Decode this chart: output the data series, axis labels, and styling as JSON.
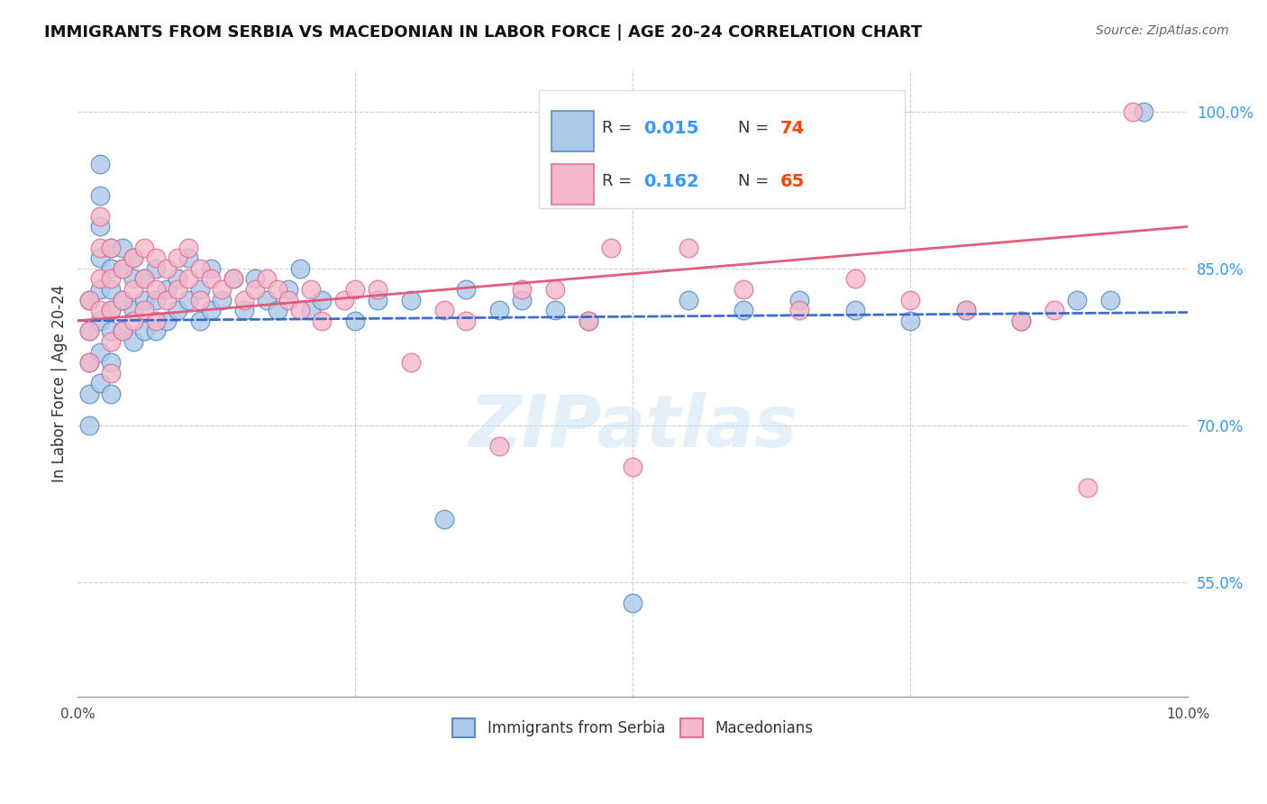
{
  "title": "IMMIGRANTS FROM SERBIA VS MACEDONIAN IN LABOR FORCE | AGE 20-24 CORRELATION CHART",
  "source": "Source: ZipAtlas.com",
  "ylabel": "In Labor Force | Age 20-24",
  "xlim": [
    0.0,
    0.1
  ],
  "ylim": [
    0.44,
    1.04
  ],
  "yticks": [
    0.55,
    0.7,
    0.85,
    1.0
  ],
  "ytick_labels": [
    "55.0%",
    "70.0%",
    "85.0%",
    "100.0%"
  ],
  "serbia_color": "#aac9e8",
  "serbia_edge": "#5a8fc0",
  "macedonia_color": "#f5b8cb",
  "macedonia_edge": "#e07095",
  "serbia_line_color": "#3366cc",
  "macedonia_line_color": "#e05575",
  "serbia_r": 0.015,
  "serbia_n": 74,
  "macedonia_r": 0.162,
  "macedonia_n": 65,
  "legend_r_color": "#3399ff",
  "legend_n_color": "#ff4400",
  "watermark": "ZIPatlas",
  "background_color": "#ffffff",
  "grid_color": "#cccccc",
  "serbia_x": [
    0.001,
    0.001,
    0.001,
    0.001,
    0.001,
    0.002,
    0.002,
    0.002,
    0.002,
    0.002,
    0.002,
    0.002,
    0.002,
    0.003,
    0.003,
    0.003,
    0.003,
    0.003,
    0.003,
    0.003,
    0.004,
    0.004,
    0.004,
    0.004,
    0.005,
    0.005,
    0.005,
    0.005,
    0.006,
    0.006,
    0.006,
    0.007,
    0.007,
    0.007,
    0.008,
    0.008,
    0.009,
    0.009,
    0.01,
    0.01,
    0.011,
    0.011,
    0.012,
    0.012,
    0.013,
    0.014,
    0.015,
    0.016,
    0.017,
    0.018,
    0.019,
    0.02,
    0.021,
    0.022,
    0.025,
    0.027,
    0.03,
    0.033,
    0.035,
    0.038,
    0.04,
    0.043,
    0.046,
    0.05,
    0.055,
    0.06,
    0.065,
    0.07,
    0.075,
    0.08,
    0.085,
    0.09,
    0.093,
    0.096
  ],
  "serbia_y": [
    0.82,
    0.79,
    0.76,
    0.73,
    0.7,
    0.95,
    0.92,
    0.89,
    0.86,
    0.83,
    0.8,
    0.77,
    0.74,
    0.87,
    0.85,
    0.83,
    0.81,
    0.79,
    0.76,
    0.73,
    0.87,
    0.85,
    0.82,
    0.79,
    0.86,
    0.84,
    0.81,
    0.78,
    0.84,
    0.82,
    0.79,
    0.85,
    0.82,
    0.79,
    0.83,
    0.8,
    0.84,
    0.81,
    0.86,
    0.82,
    0.83,
    0.8,
    0.85,
    0.81,
    0.82,
    0.84,
    0.81,
    0.84,
    0.82,
    0.81,
    0.83,
    0.85,
    0.81,
    0.82,
    0.8,
    0.82,
    0.82,
    0.61,
    0.83,
    0.81,
    0.82,
    0.81,
    0.8,
    0.53,
    0.82,
    0.81,
    0.82,
    0.81,
    0.8,
    0.81,
    0.8,
    0.82,
    0.82,
    1.0
  ],
  "macedonia_x": [
    0.001,
    0.001,
    0.001,
    0.002,
    0.002,
    0.002,
    0.002,
    0.003,
    0.003,
    0.003,
    0.003,
    0.003,
    0.004,
    0.004,
    0.004,
    0.005,
    0.005,
    0.005,
    0.006,
    0.006,
    0.006,
    0.007,
    0.007,
    0.007,
    0.008,
    0.008,
    0.009,
    0.009,
    0.01,
    0.01,
    0.011,
    0.011,
    0.012,
    0.013,
    0.014,
    0.015,
    0.016,
    0.017,
    0.018,
    0.019,
    0.02,
    0.021,
    0.022,
    0.024,
    0.025,
    0.027,
    0.03,
    0.033,
    0.035,
    0.038,
    0.04,
    0.043,
    0.046,
    0.048,
    0.05,
    0.055,
    0.06,
    0.065,
    0.07,
    0.075,
    0.08,
    0.085,
    0.088,
    0.091,
    0.095
  ],
  "macedonia_y": [
    0.82,
    0.79,
    0.76,
    0.9,
    0.87,
    0.84,
    0.81,
    0.87,
    0.84,
    0.81,
    0.78,
    0.75,
    0.85,
    0.82,
    0.79,
    0.86,
    0.83,
    0.8,
    0.87,
    0.84,
    0.81,
    0.86,
    0.83,
    0.8,
    0.85,
    0.82,
    0.86,
    0.83,
    0.87,
    0.84,
    0.85,
    0.82,
    0.84,
    0.83,
    0.84,
    0.82,
    0.83,
    0.84,
    0.83,
    0.82,
    0.81,
    0.83,
    0.8,
    0.82,
    0.83,
    0.83,
    0.76,
    0.81,
    0.8,
    0.68,
    0.83,
    0.83,
    0.8,
    0.87,
    0.66,
    0.87,
    0.83,
    0.81,
    0.84,
    0.82,
    0.81,
    0.8,
    0.81,
    0.64,
    1.0
  ]
}
